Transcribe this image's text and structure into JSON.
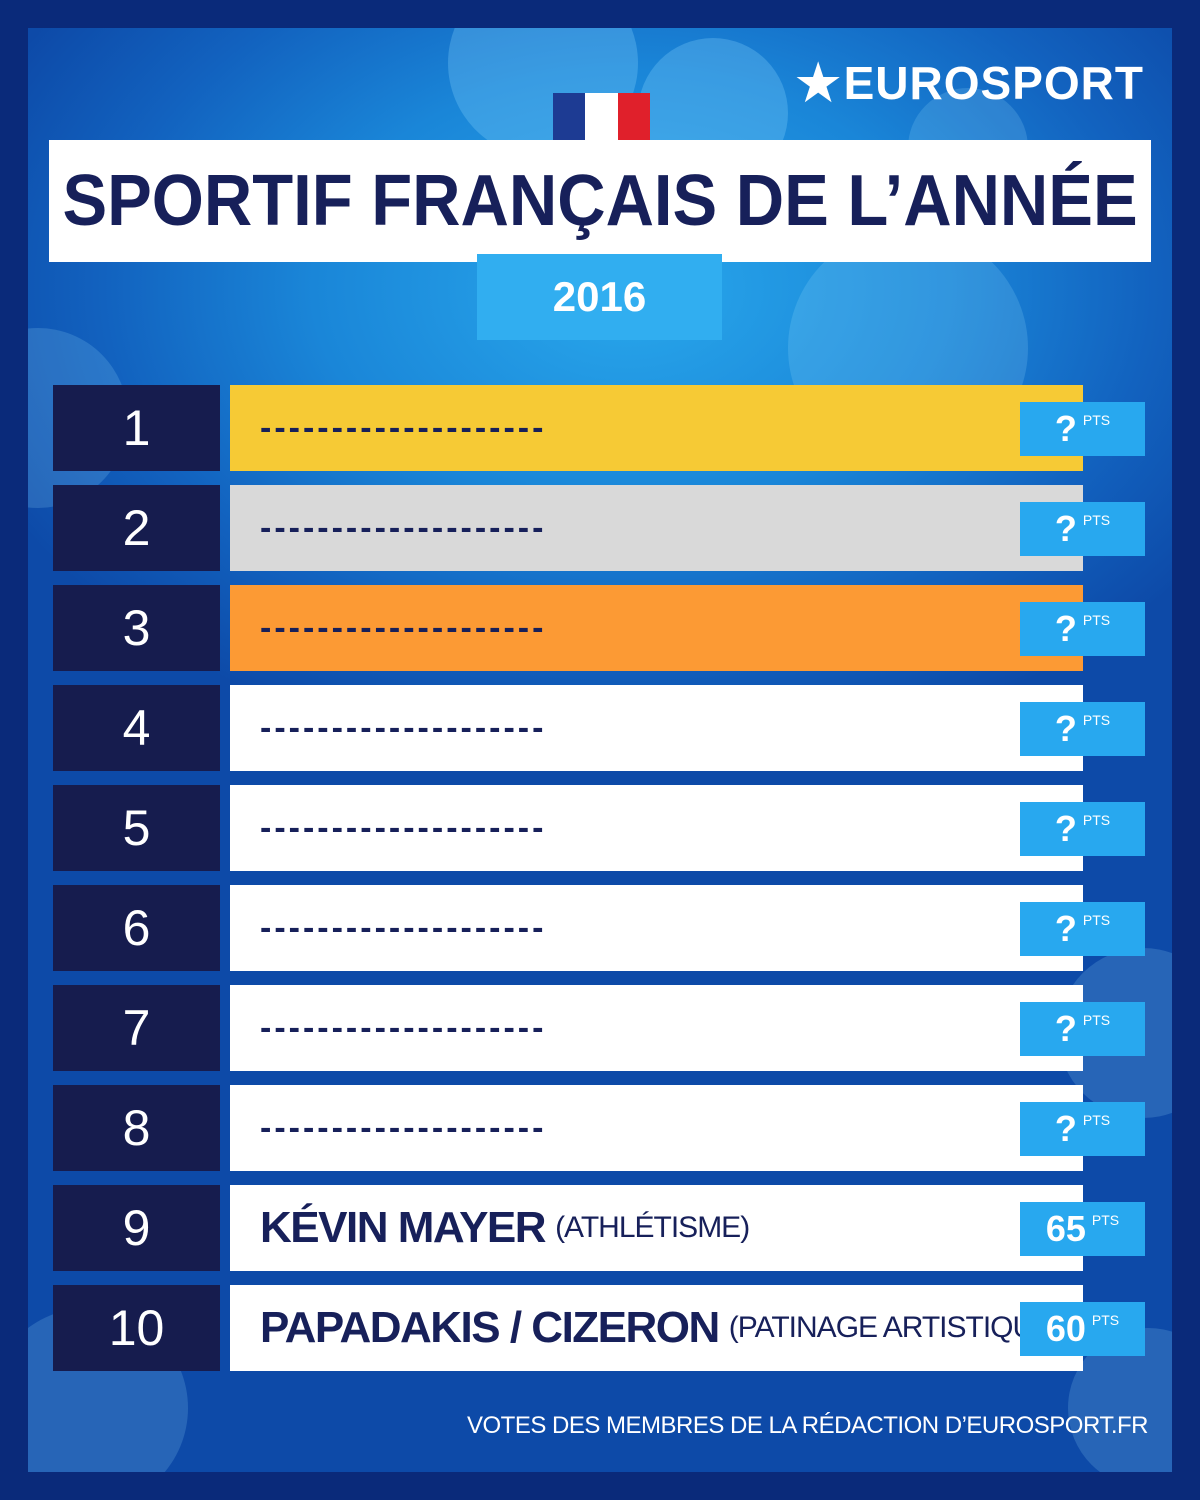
{
  "logo": {
    "text": "EUROSPORT"
  },
  "title": "SPORTIF FRANÇAIS DE L’ANNÉE",
  "year": "2016",
  "rows": [
    {
      "rank": "1",
      "name": "--------------------",
      "sport": "",
      "points": "?",
      "unit": "PTS",
      "color": "#f6ca35"
    },
    {
      "rank": "2",
      "name": "--------------------",
      "sport": "",
      "points": "?",
      "unit": "PTS",
      "color": "#d9d9d9"
    },
    {
      "rank": "3",
      "name": "--------------------",
      "sport": "",
      "points": "?",
      "unit": "PTS",
      "color": "#fc9a34"
    },
    {
      "rank": "4",
      "name": "--------------------",
      "sport": "",
      "points": "?",
      "unit": "PTS",
      "color": "#ffffff"
    },
    {
      "rank": "5",
      "name": "--------------------",
      "sport": "",
      "points": "?",
      "unit": "PTS",
      "color": "#ffffff"
    },
    {
      "rank": "6",
      "name": "--------------------",
      "sport": "",
      "points": "?",
      "unit": "PTS",
      "color": "#ffffff"
    },
    {
      "rank": "7",
      "name": "--------------------",
      "sport": "",
      "points": "?",
      "unit": "PTS",
      "color": "#ffffff"
    },
    {
      "rank": "8",
      "name": "--------------------",
      "sport": "",
      "points": "?",
      "unit": "PTS",
      "color": "#ffffff"
    },
    {
      "rank": "9",
      "name": "KÉVIN MAYER",
      "sport": "(ATHLÉTISME)",
      "points": "65",
      "unit": "PTS",
      "color": "#ffffff"
    },
    {
      "rank": "10",
      "name": "PAPADAKIS / CIZERON",
      "sport": "(PATINAGE ARTISTIQUE)",
      "points": "60",
      "unit": "PTS",
      "color": "#ffffff"
    }
  ],
  "footer": "VOTES DES MEMBRES DE LA RÉDACTION D’EUROSPORT.FR",
  "colors": {
    "navy": "#161c4e",
    "accent": "#28a8ef",
    "gold": "#f6ca35",
    "silver": "#d9d9d9",
    "bronze": "#fc9a34"
  }
}
